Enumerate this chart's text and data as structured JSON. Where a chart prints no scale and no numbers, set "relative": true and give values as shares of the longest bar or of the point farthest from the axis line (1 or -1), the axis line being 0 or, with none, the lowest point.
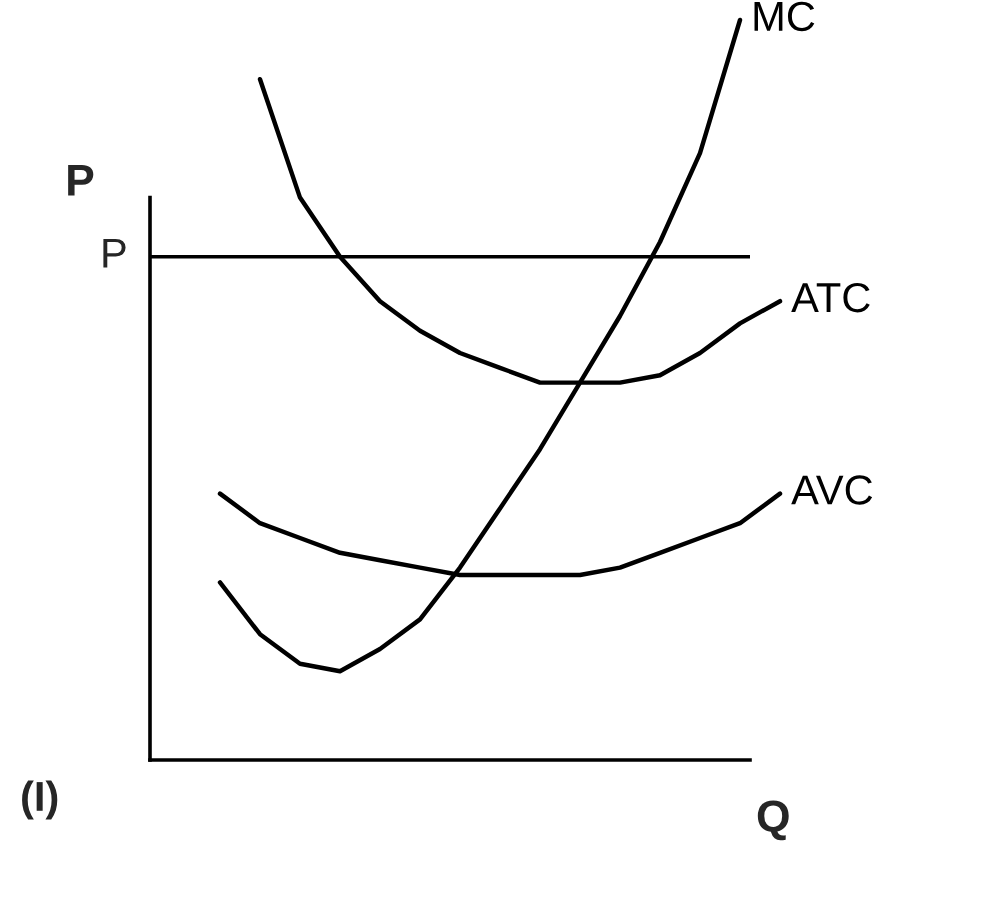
{
  "chart_data": {
    "type": "line",
    "relative": true,
    "xlabel": "Q",
    "ylabel": "P",
    "annotations": [
      "(I)"
    ],
    "categories": [
      null,
      null,
      null,
      null,
      null,
      null,
      null,
      null,
      null,
      null,
      null,
      null,
      null,
      null,
      null
    ],
    "series": [
      {
        "name": "MC",
        "color": "#000000",
        "values": [
          0.24,
          0.17,
          0.13,
          0.12,
          0.15,
          0.19,
          0.26,
          0.34,
          0.42,
          0.51,
          0.6,
          0.7,
          0.82,
          1.0,
          null
        ]
      },
      {
        "name": "ATC",
        "color": "#000000",
        "values": [
          null,
          0.92,
          0.76,
          0.68,
          0.62,
          0.58,
          0.55,
          0.53,
          0.51,
          0.51,
          0.51,
          0.52,
          0.55,
          0.59,
          0.62
        ]
      },
      {
        "name": "AVC",
        "color": "#000000",
        "values": [
          0.36,
          0.32,
          0.3,
          0.28,
          0.27,
          0.26,
          0.25,
          0.25,
          0.25,
          0.25,
          0.26,
          0.28,
          0.3,
          0.32,
          0.36
        ]
      }
    ],
    "ref_lines": [
      {
        "axis": "y",
        "value": 0.68,
        "label": "P",
        "color": "#000000"
      }
    ],
    "marker": "none",
    "line_style": "solid",
    "legend": false
  }
}
